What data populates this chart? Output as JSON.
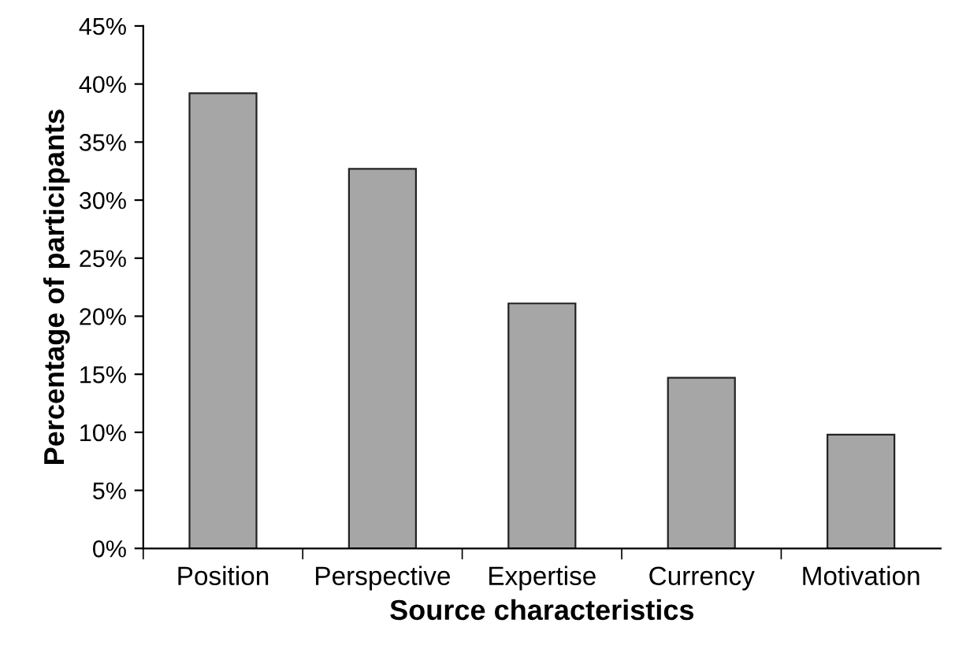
{
  "chart_data": {
    "type": "bar",
    "xlabel": "Source characteristics",
    "ylabel": "Percentage of participants",
    "categories": [
      "Position",
      "Perspective",
      "Expertise",
      "Currency",
      "Motivation"
    ],
    "values": [
      39.2,
      32.7,
      21.1,
      14.7,
      9.8
    ],
    "color": "#a6a6a6",
    "ylim": [
      0,
      45
    ],
    "yticks": [
      {
        "value": 0,
        "label": "0%"
      },
      {
        "value": 5,
        "label": "5%"
      },
      {
        "value": 10,
        "label": "10%"
      },
      {
        "value": 15,
        "label": "15%"
      },
      {
        "value": 20,
        "label": "20%"
      },
      {
        "value": 25,
        "label": "25%"
      },
      {
        "value": 30,
        "label": "30%"
      },
      {
        "value": 35,
        "label": "35%"
      },
      {
        "value": 40,
        "label": "40%"
      },
      {
        "value": 45,
        "label": "45%"
      }
    ],
    "grid": false
  }
}
